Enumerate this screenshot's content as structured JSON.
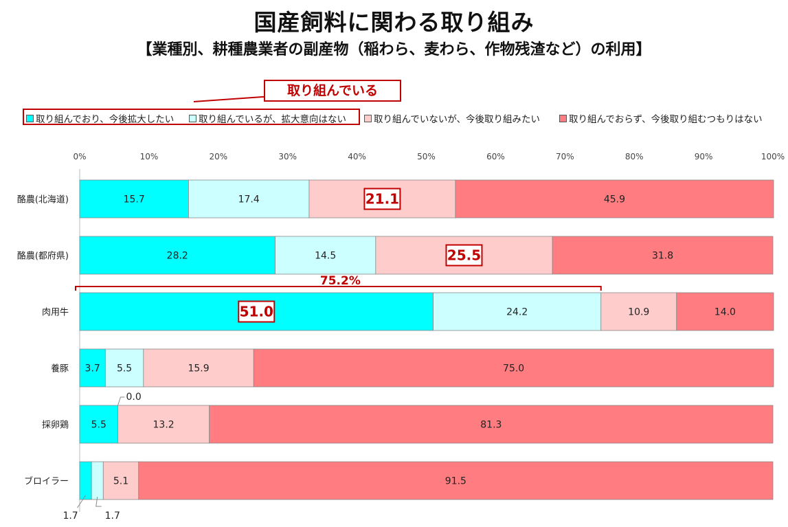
{
  "header": {
    "title": "国産飼料に関わる取り組み",
    "subtitle": "【業種別、耕種農業者の副産物（稲わら、麦わら、作物残渣など）の利用】"
  },
  "callout": {
    "label": "取り組んでいる"
  },
  "legend": {
    "items": [
      {
        "label": "取り組んでおり、今後拡大したい",
        "color": "#00ffff"
      },
      {
        "label": "取り組んでいるが、拡大意向はない",
        "color": "#ccffff"
      },
      {
        "label": "取り組んでいないが、今後取り組みたい",
        "color": "#ffcccc"
      },
      {
        "label": "取り組んでおらず、今後取り組むつもりはない",
        "color": "#ff7c80"
      }
    ]
  },
  "chart_data": {
    "type": "bar",
    "orientation": "horizontal",
    "stacked": true,
    "xlim": [
      0,
      100
    ],
    "x_ticks": [
      "0%",
      "10%",
      "20%",
      "30%",
      "40%",
      "50%",
      "60%",
      "70%",
      "80%",
      "90%",
      "100%"
    ],
    "categories": [
      "酪農(北海道)",
      "酪農(都府県)",
      "肉用牛",
      "養豚",
      "採卵鶏",
      "ブロイラー"
    ],
    "series": [
      {
        "name": "取り組んでおり、今後拡大したい",
        "color": "#00ffff",
        "values": [
          15.7,
          28.2,
          51.0,
          3.7,
          5.5,
          1.7
        ]
      },
      {
        "name": "取り組んでいるが、拡大意向はない",
        "color": "#ccffff",
        "values": [
          17.4,
          14.5,
          24.2,
          5.5,
          0.0,
          1.7
        ]
      },
      {
        "name": "取り組んでいないが、今後取り組みたい",
        "color": "#ffcccc",
        "values": [
          21.1,
          25.5,
          10.9,
          15.9,
          13.2,
          5.1
        ]
      },
      {
        "name": "取り組んでおらず、今後取り組むつもりはない",
        "color": "#ff7c80",
        "values": [
          45.9,
          31.8,
          14.0,
          75.0,
          81.3,
          91.5
        ]
      }
    ],
    "labels": [
      [
        "15.7",
        "17.4",
        "21.1",
        "45.9"
      ],
      [
        "28.2",
        "14.5",
        "25.5",
        "31.8"
      ],
      [
        "51.0",
        "24.2",
        "10.9",
        "14.0"
      ],
      [
        "3.7",
        "5.5",
        "15.9",
        "75.0"
      ],
      [
        "5.5",
        "0.0",
        "13.2",
        "81.3"
      ],
      [
        "1.7",
        "1.7",
        "5.1",
        "91.5"
      ]
    ],
    "highlights": [
      {
        "row": 0,
        "series": 2,
        "label": "21.1"
      },
      {
        "row": 1,
        "series": 2,
        "label": "25.5"
      },
      {
        "row": 2,
        "series": 0,
        "label": "51.0"
      }
    ],
    "bracket": {
      "row": 2,
      "label": "75.2%",
      "from": 0,
      "to": 75.2
    }
  }
}
